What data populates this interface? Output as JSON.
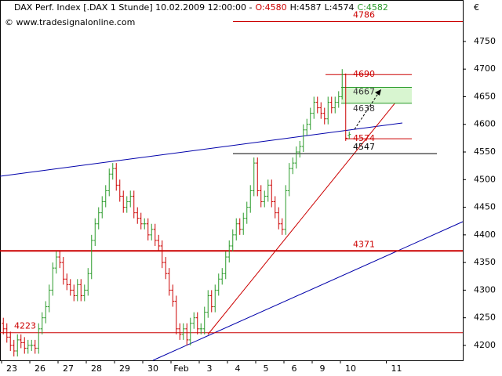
{
  "chart_data": {
    "type": "ohlc",
    "title": "DAX Perf. Index [.DAX  1 Stunde] 10.02.2009 12:00:00 -",
    "quote_labels": [
      {
        "text": "O:4580",
        "color": "#cc0000"
      },
      {
        "text": "H:4587",
        "color": "#000000"
      },
      {
        "text": "L:4574",
        "color": "#000000"
      },
      {
        "text": "C:4582",
        "color": "#2a9a2a"
      }
    ],
    "watermark": "© www.tradesignalonline.com",
    "currency": "€",
    "up_color": "#2a9a2a",
    "down_color": "#cc0000",
    "categories": [
      "23",
      null,
      null,
      null,
      null,
      null,
      null,
      null,
      "26",
      null,
      null,
      null,
      null,
      null,
      null,
      null,
      "27",
      null,
      null,
      null,
      null,
      null,
      null,
      null,
      "28",
      null,
      null,
      null,
      null,
      null,
      null,
      null,
      "29",
      null,
      null,
      null,
      null,
      null,
      null,
      null,
      "30",
      null,
      null,
      null,
      null,
      null,
      null,
      null,
      "Feb",
      null,
      null,
      null,
      null,
      null,
      null,
      null,
      "3",
      null,
      null,
      null,
      null,
      null,
      null,
      null,
      "4",
      null,
      null,
      null,
      null,
      null,
      null,
      null,
      "5",
      null,
      null,
      null,
      null,
      null,
      null,
      null,
      "6",
      null,
      null,
      null,
      null,
      null,
      null,
      null,
      "9",
      null,
      null,
      null,
      null,
      null,
      null,
      null,
      "10",
      null,
      null,
      null,
      null,
      null,
      null,
      null,
      null,
      null,
      null,
      null,
      null,
      "11"
    ],
    "open": [
      4240,
      4230,
      4215,
      4200,
      4190,
      4210,
      4205,
      4195,
      4200,
      4200,
      4195,
      4230,
      4250,
      4270,
      4300,
      4340,
      4360,
      4350,
      4320,
      4310,
      4300,
      4290,
      4310,
      4290,
      4300,
      4330,
      4390,
      4420,
      4440,
      4460,
      4480,
      4510,
      4520,
      4490,
      4470,
      4450,
      4460,
      4470,
      4440,
      4430,
      4420,
      4420,
      4400,
      4410,
      4390,
      4380,
      4350,
      4330,
      4300,
      4280,
      4230,
      4220,
      4230,
      4210,
      4240,
      4250,
      4230,
      4230,
      4260,
      4290,
      4270,
      4300,
      4320,
      4330,
      4360,
      4380,
      4400,
      4420,
      4410,
      4430,
      4450,
      4480,
      4530,
      4480,
      4460,
      4470,
      4490,
      4460,
      4440,
      4420,
      4410,
      4480,
      4520,
      4530,
      4550,
      4560,
      4590,
      4600,
      4620,
      4640,
      4630,
      4620,
      4610,
      4640,
      4630,
      4640,
      4650,
      4690,
      4580,
      null,
      null,
      null,
      null,
      null,
      null,
      null,
      null,
      null,
      null,
      null
    ],
    "high": [
      4250,
      4240,
      4225,
      4210,
      4220,
      4220,
      4215,
      4210,
      4210,
      4210,
      4240,
      4260,
      4280,
      4310,
      4350,
      4370,
      4370,
      4360,
      4330,
      4320,
      4310,
      4320,
      4320,
      4310,
      4340,
      4400,
      4430,
      4450,
      4470,
      4490,
      4520,
      4530,
      4530,
      4500,
      4480,
      4470,
      4480,
      4480,
      4450,
      4440,
      4430,
      4430,
      4420,
      4420,
      4400,
      4390,
      4360,
      4340,
      4310,
      4290,
      4240,
      4240,
      4240,
      4250,
      4260,
      4260,
      4240,
      4270,
      4300,
      4300,
      4310,
      4330,
      4340,
      4370,
      4390,
      4410,
      4430,
      4430,
      4440,
      4460,
      4490,
      4540,
      4540,
      4490,
      4480,
      4500,
      4500,
      4470,
      4450,
      4430,
      4490,
      4530,
      4540,
      4560,
      4570,
      4600,
      4610,
      4630,
      4650,
      4650,
      4640,
      4630,
      4650,
      4650,
      4650,
      4660,
      4700,
      4692,
      4587,
      null,
      null,
      null,
      null,
      null,
      null,
      null,
      null,
      null,
      null,
      null
    ],
    "low": [
      4220,
      4205,
      4190,
      4180,
      4180,
      4195,
      4185,
      4185,
      4190,
      4185,
      4185,
      4220,
      4240,
      4260,
      4290,
      4330,
      4340,
      4310,
      4300,
      4290,
      4280,
      4280,
      4280,
      4280,
      4290,
      4320,
      4380,
      4410,
      4430,
      4450,
      4470,
      4500,
      4480,
      4460,
      4440,
      4440,
      4450,
      4430,
      4420,
      4410,
      4410,
      4390,
      4390,
      4380,
      4370,
      4340,
      4320,
      4290,
      4270,
      4220,
      4210,
      4210,
      4200,
      4200,
      4230,
      4220,
      4220,
      4220,
      4250,
      4260,
      4260,
      4290,
      4310,
      4320,
      4350,
      4370,
      4390,
      4400,
      4400,
      4420,
      4440,
      4470,
      4470,
      4450,
      4450,
      4460,
      4450,
      4430,
      4410,
      4400,
      4400,
      4470,
      4510,
      4520,
      4540,
      4550,
      4580,
      4590,
      4610,
      4620,
      4610,
      4600,
      4600,
      4620,
      4620,
      4630,
      4645,
      4570,
      4574,
      null,
      null,
      null,
      null,
      null,
      null,
      null,
      null,
      null,
      null,
      null
    ],
    "close": [
      4230,
      4215,
      4200,
      4190,
      4210,
      4205,
      4195,
      4200,
      4200,
      4195,
      4230,
      4250,
      4270,
      4300,
      4340,
      4360,
      4350,
      4320,
      4310,
      4300,
      4290,
      4310,
      4290,
      4300,
      4330,
      4390,
      4420,
      4440,
      4460,
      4480,
      4510,
      4520,
      4490,
      4470,
      4450,
      4460,
      4470,
      4440,
      4430,
      4420,
      4420,
      4400,
      4410,
      4390,
      4380,
      4350,
      4330,
      4300,
      4280,
      4230,
      4220,
      4230,
      4210,
      4240,
      4250,
      4230,
      4230,
      4260,
      4290,
      4270,
      4300,
      4320,
      4330,
      4360,
      4380,
      4400,
      4420,
      4410,
      4430,
      4450,
      4480,
      4530,
      4480,
      4460,
      4470,
      4490,
      4460,
      4440,
      4420,
      4410,
      4480,
      4520,
      4530,
      4550,
      4560,
      4590,
      4600,
      4620,
      4640,
      4630,
      4620,
      4610,
      4640,
      4630,
      4640,
      4650,
      4690,
      4575,
      4582,
      null,
      null,
      null,
      null,
      null,
      null,
      null,
      null,
      null,
      null,
      null
    ],
    "levels": [
      {
        "value": 4786,
        "color": "#cc0000"
      },
      {
        "value": 4690,
        "color": "#cc0000"
      },
      {
        "value": 4667,
        "color": "#2a9a2a"
      },
      {
        "value": 4638,
        "color": "#2a9a2a"
      },
      {
        "value": 4574,
        "color": "#cc0000"
      },
      {
        "value": 4547,
        "color": "#000000"
      },
      {
        "value": 4371,
        "color": "#cc0000"
      },
      {
        "value": 4223,
        "color": "#cc0000"
      }
    ],
    "ylim": [
      4173,
      4825
    ],
    "yticks": [
      4200,
      4250,
      4300,
      4350,
      4400,
      4450,
      4500,
      4550,
      4600,
      4650,
      4700,
      4750
    ]
  }
}
